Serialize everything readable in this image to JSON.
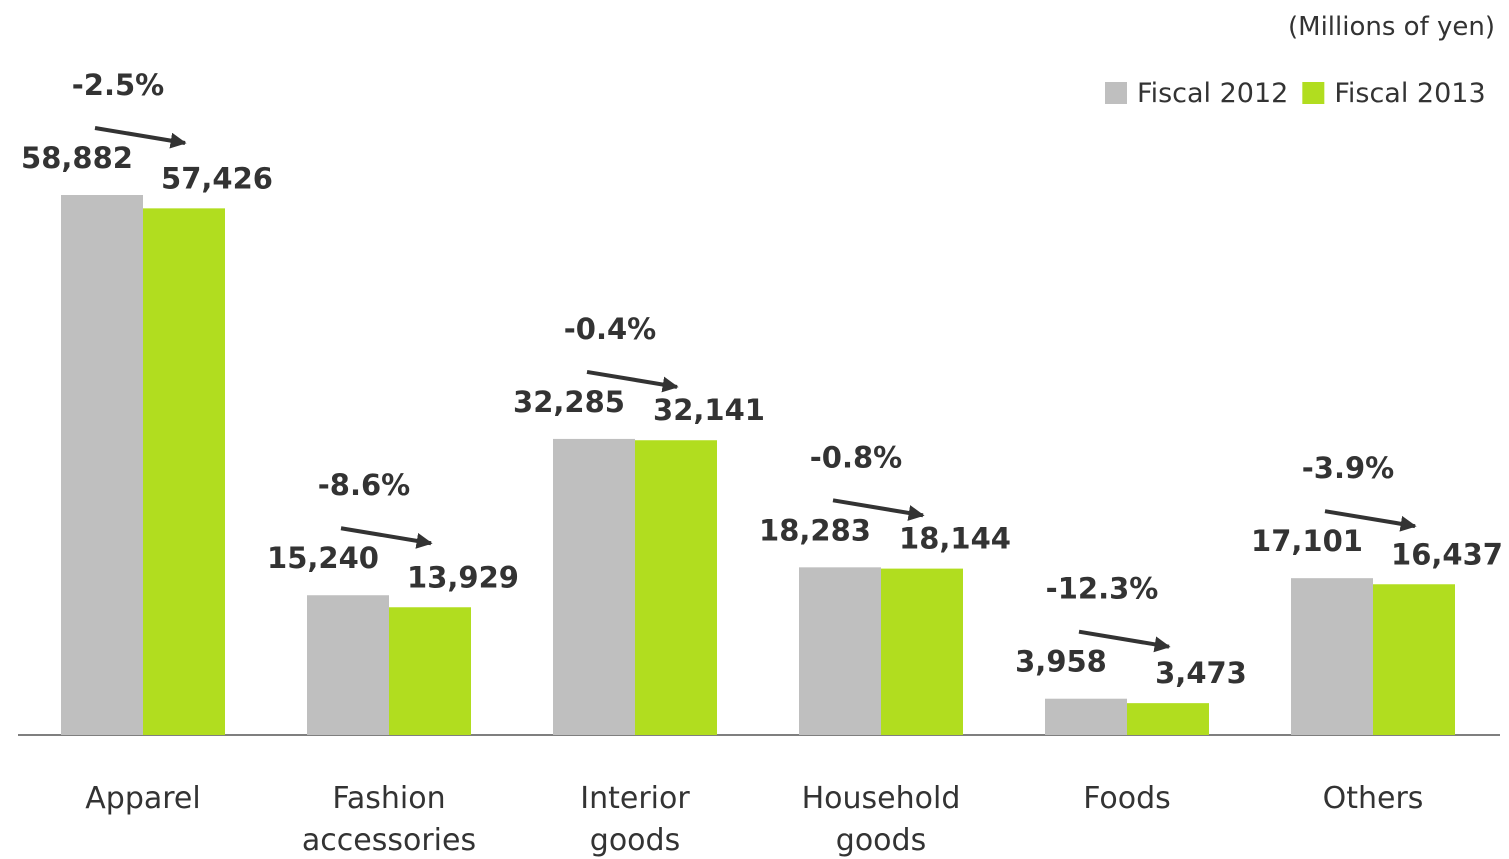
{
  "chart_data": {
    "type": "bar",
    "units": "(Millions of yen)",
    "categories": [
      "Apparel",
      "Fashion accessories",
      "Interior goods",
      "Household goods",
      "Foods",
      "Others"
    ],
    "series": [
      {
        "name": "Fiscal 2012",
        "color": "#bfbfbf",
        "values": [
          58882,
          15240,
          32285,
          18283,
          3958,
          17101
        ],
        "value_labels": [
          "58,882",
          "15,240",
          "32,285",
          "18,283",
          "3,958",
          "17,101"
        ]
      },
      {
        "name": "Fiscal 2013",
        "color": "#b1dd1f",
        "values": [
          57426,
          13929,
          32141,
          18144,
          3473,
          16437
        ],
        "value_labels": [
          "57,426",
          "13,929",
          "32,141",
          "18,144",
          "3,473",
          "16,437"
        ]
      }
    ],
    "annotations": [
      "-2.5%",
      "-8.6%",
      "-0.4%",
      "-0.8%",
      "-12.3%",
      "-3.9%"
    ],
    "legend": "top-right"
  }
}
